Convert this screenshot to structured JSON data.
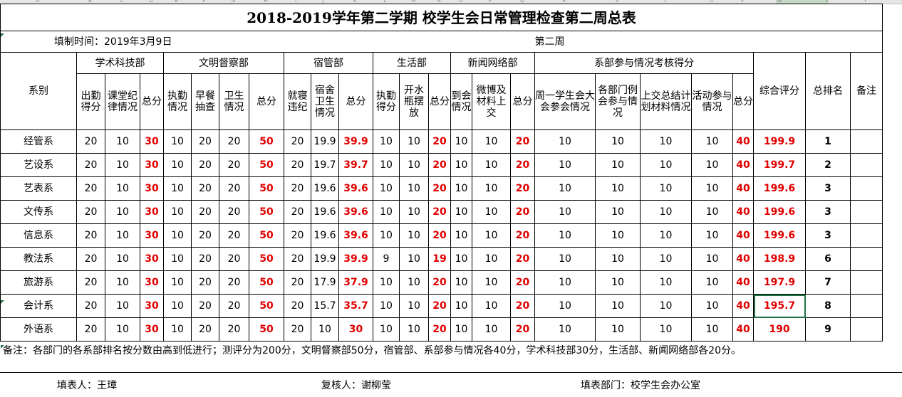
{
  "sheet": {
    "title": "2018-2019学年第二学期  校学生会日常管理检查第二周总表",
    "fill_time": "填制时间：2019年3月9日",
    "week": "第二周"
  },
  "header": {
    "dept_label": "系别",
    "groups": [
      "学术科技部",
      "文明督察部",
      "宿管部",
      "生活部",
      "新闻网络部",
      "系部参与情况考核得分"
    ],
    "composite": "综合评分",
    "rank": "总排名",
    "remark": "备注",
    "subs": [
      "出勤得分",
      "课堂纪律情况",
      "总分",
      "执勤情况",
      "早餐抽查",
      "卫生情况",
      "总分",
      "就寝违纪",
      "宿舍卫生情况",
      "总分",
      "执勤得分",
      "开水瓶摆放",
      "总分",
      "到会情况",
      "微博及材料上交",
      "总分",
      "周一学生会大会参会情况",
      "各部门例会参与情况",
      "上交总结计划材料情况",
      "活动参与情况",
      "总分"
    ]
  },
  "rows": [
    {
      "dept": "经管系",
      "v": [
        "20",
        "10",
        "30",
        "10",
        "20",
        "20",
        "50",
        "20",
        "19.9",
        "39.9",
        "10",
        "10",
        "20",
        "10",
        "10",
        "20",
        "10",
        "10",
        "10",
        "10",
        "40"
      ],
      "score": "199.9",
      "rank": "1"
    },
    {
      "dept": "艺设系",
      "v": [
        "20",
        "10",
        "30",
        "10",
        "20",
        "20",
        "50",
        "20",
        "19.7",
        "39.7",
        "10",
        "10",
        "20",
        "10",
        "10",
        "20",
        "10",
        "10",
        "10",
        "10",
        "40"
      ],
      "score": "199.7",
      "rank": "2"
    },
    {
      "dept": "艺表系",
      "v": [
        "20",
        "10",
        "30",
        "10",
        "20",
        "20",
        "50",
        "20",
        "19.6",
        "39.6",
        "10",
        "10",
        "20",
        "10",
        "10",
        "20",
        "10",
        "10",
        "10",
        "10",
        "40"
      ],
      "score": "199.6",
      "rank": "3"
    },
    {
      "dept": "文传系",
      "v": [
        "20",
        "10",
        "30",
        "10",
        "20",
        "20",
        "50",
        "20",
        "19.6",
        "39.6",
        "10",
        "10",
        "20",
        "10",
        "10",
        "20",
        "10",
        "10",
        "10",
        "10",
        "40"
      ],
      "score": "199.6",
      "rank": "3"
    },
    {
      "dept": "信息系",
      "v": [
        "20",
        "10",
        "30",
        "10",
        "20",
        "20",
        "50",
        "20",
        "19.6",
        "39.6",
        "10",
        "10",
        "20",
        "10",
        "10",
        "20",
        "10",
        "10",
        "10",
        "10",
        "40"
      ],
      "score": "199.6",
      "rank": "3"
    },
    {
      "dept": "教法系",
      "v": [
        "20",
        "10",
        "30",
        "10",
        "20",
        "20",
        "50",
        "20",
        "19.9",
        "39.9",
        "9",
        "10",
        "19",
        "10",
        "10",
        "20",
        "10",
        "10",
        "10",
        "10",
        "40"
      ],
      "score": "198.9",
      "rank": "6"
    },
    {
      "dept": "旅游系",
      "v": [
        "20",
        "10",
        "30",
        "10",
        "20",
        "20",
        "50",
        "20",
        "17.9",
        "37.9",
        "10",
        "10",
        "20",
        "10",
        "10",
        "20",
        "10",
        "10",
        "10",
        "10",
        "40"
      ],
      "score": "197.9",
      "rank": "7"
    },
    {
      "dept": "会计系",
      "v": [
        "20",
        "10",
        "30",
        "10",
        "20",
        "20",
        "50",
        "20",
        "15.7",
        "35.7",
        "10",
        "10",
        "20",
        "10",
        "10",
        "20",
        "10",
        "10",
        "10",
        "10",
        "40"
      ],
      "score": "195.7",
      "rank": "8"
    },
    {
      "dept": "外语系",
      "v": [
        "20",
        "10",
        "30",
        "10",
        "20",
        "20",
        "50",
        "20",
        "10",
        "30",
        "10",
        "10",
        "20",
        "10",
        "10",
        "20",
        "10",
        "10",
        "10",
        "10",
        "40"
      ],
      "score": "190",
      "rank": "9"
    }
  ],
  "note": "备注：各部门的各系部排名按分数由高到低进行；测评分为200分，文明督察部50分，宿管部、系部参与情况各40分，学术科技部30分，生活部、新闻网络部各20分。",
  "footer": {
    "filler": "填表人：王璋",
    "reviewer": "复核人：谢柳莹",
    "department": "填表部门：校学生会办公室"
  },
  "column_letters": [
    "A",
    "B",
    "C",
    "D",
    "E",
    "F",
    "G",
    "H",
    "I",
    "J",
    "K",
    "L",
    "M",
    "N",
    "O",
    "P",
    "Q",
    "R",
    "S",
    "T",
    "U",
    "V",
    "W",
    "X",
    "Y"
  ],
  "colors": {
    "red": "#e00000",
    "selection": "#217346"
  }
}
